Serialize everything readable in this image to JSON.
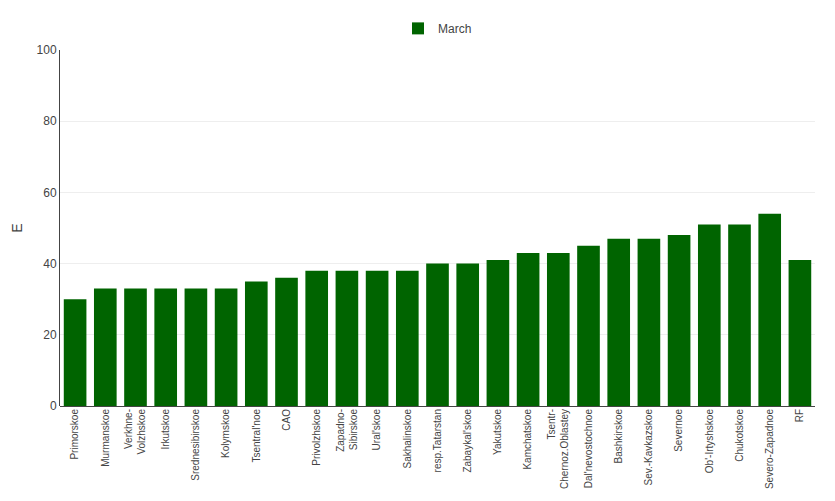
{
  "chart_data": {
    "type": "bar",
    "categories": [
      "Primorskoe",
      "Murmanskoe",
      "Verkhne-\nVolzhskoe",
      "Irkutskoe",
      "Srednesibirskoe",
      "Kolymskoe",
      "Tsentral'noe",
      "CAO",
      "Privolzhskoe",
      "Zapadno-\nSibirskoe",
      "Ural'skoe",
      "Sakhalinskoe",
      "resp.Tatarstan",
      "Zabaykal'skoe",
      "Yakutskoe",
      "Kamchatskoe",
      "Tsentr-\nChernoz.Oblastey",
      "Dal'nevostochnoe",
      "Bashkirskoe",
      "Sev.-Kavkazskoe",
      "Severnoe",
      "Ob'-Irtyshskoe",
      "Chukotskoe",
      "Severo-Zapadnoe",
      "RF"
    ],
    "series": [
      {
        "name": "March",
        "color": "#006400",
        "values": [
          30,
          33,
          33,
          33,
          33,
          33,
          35,
          36,
          38,
          38,
          38,
          38,
          40,
          40,
          41,
          43,
          43,
          45,
          47,
          47,
          48,
          51,
          51,
          54,
          41
        ]
      }
    ],
    "ylabel": "E",
    "ylim": [
      0,
      100
    ],
    "yticks": [
      0,
      20,
      40,
      60,
      80,
      100
    ],
    "grid": true,
    "legend": "top"
  }
}
